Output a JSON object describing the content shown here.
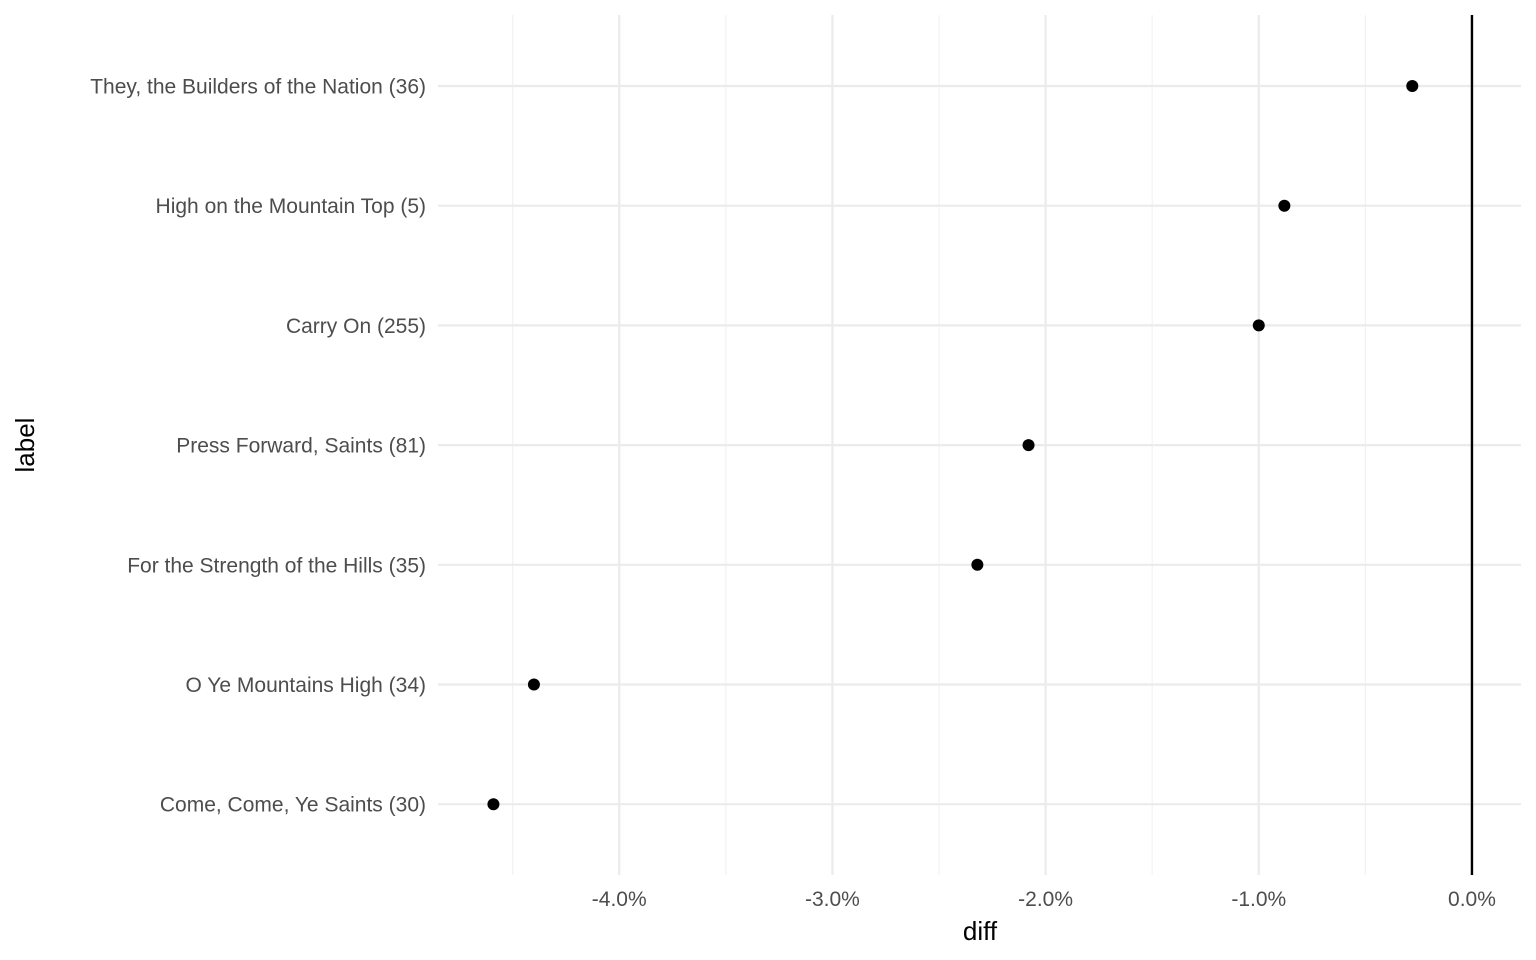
{
  "chart_data": {
    "type": "scatter",
    "xlabel": "diff",
    "ylabel": "label",
    "x_tick_labels": [
      "-4.0%",
      "-3.0%",
      "-2.0%",
      "-1.0%",
      "0.0%"
    ],
    "x_ticks": [
      -4.0,
      -3.0,
      -2.0,
      -1.0,
      0.0
    ],
    "xlim": [
      -4.85,
      0.23
    ],
    "reference_line_x": 0.0,
    "grid": true,
    "categories": [
      "They, the Builders of the Nation (36)",
      "High on the Mountain Top (5)",
      "Carry On (255)",
      "Press Forward, Saints (81)",
      "For the Strength of the Hills (35)",
      "O Ye Mountains High (34)",
      "Come, Come, Ye Saints (30)"
    ],
    "values": [
      -0.28,
      -0.88,
      -1.0,
      -2.08,
      -2.32,
      -4.4,
      -4.59
    ],
    "colors": {
      "point": "#000000",
      "grid_major": "#ebebeb",
      "grid_minor": "#f2f2f2",
      "reference_line": "#000000"
    }
  }
}
